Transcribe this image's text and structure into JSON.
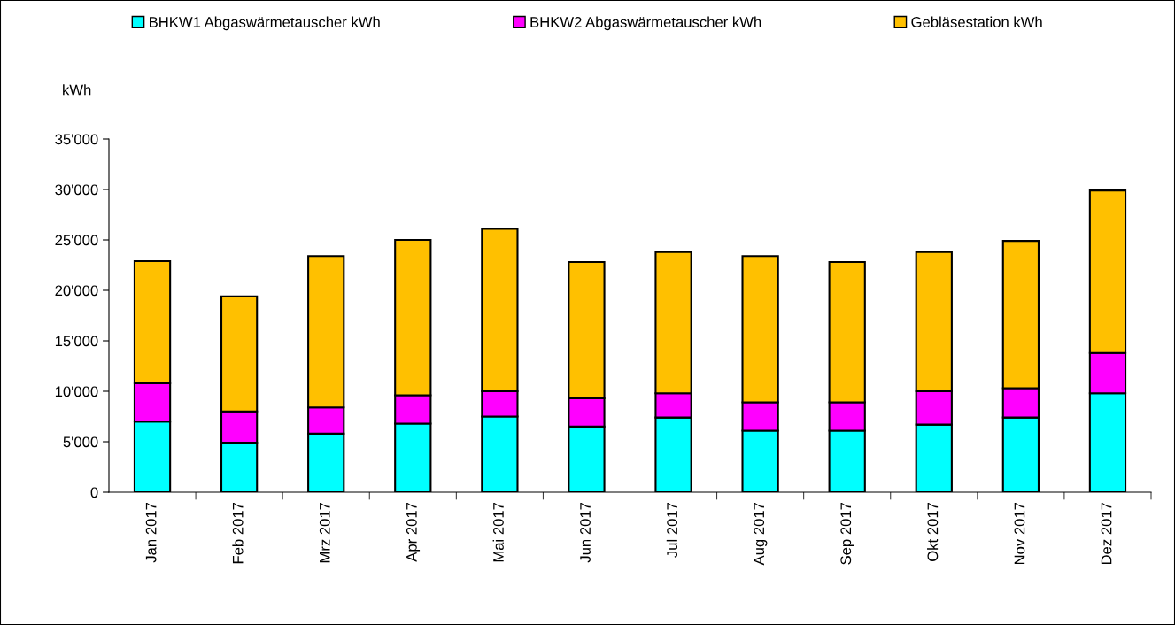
{
  "chart_data": {
    "type": "bar",
    "stacked": true,
    "ylabel": "kWh",
    "categories": [
      "Jan 2017",
      "Feb 2017",
      "Mrz 2017",
      "Apr 2017",
      "Mai 2017",
      "Jun 2017",
      "Jul 2017",
      "Aug 2017",
      "Sep 2017",
      "Okt 2017",
      "Nov 2017",
      "Dez 2017"
    ],
    "series": [
      {
        "name": "BHKW1 Abgaswärmetauscher kWh",
        "color": "#00ffff",
        "values": [
          7000,
          4900,
          5800,
          6800,
          7500,
          6500,
          7400,
          6100,
          6100,
          6700,
          7400,
          9800
        ]
      },
      {
        "name": "BHKW2 Abgaswärmetauscher kWh",
        "color": "#ff00ff",
        "values": [
          3800,
          3100,
          2600,
          2800,
          2500,
          2800,
          2400,
          2800,
          2800,
          3300,
          2900,
          4000
        ]
      },
      {
        "name": "Gebläsestation kWh",
        "color": "#ffc000",
        "values": [
          12100,
          11400,
          15000,
          15400,
          16100,
          13500,
          14000,
          14500,
          13900,
          13800,
          14600,
          16100
        ]
      }
    ],
    "ylim": [
      0,
      35000
    ],
    "yticks": [
      0,
      {
        "value": 5000,
        "label": "5'000"
      },
      {
        "value": 10000,
        "label": "10'000"
      },
      {
        "value": 15000,
        "label": "15'000"
      },
      {
        "value": 20000,
        "label": "20'000"
      },
      {
        "value": 25000,
        "label": "25'000"
      },
      {
        "value": 30000,
        "label": "30'000"
      },
      {
        "value": 35000,
        "label": "35'000"
      }
    ],
    "grid": false,
    "legend": "top"
  }
}
